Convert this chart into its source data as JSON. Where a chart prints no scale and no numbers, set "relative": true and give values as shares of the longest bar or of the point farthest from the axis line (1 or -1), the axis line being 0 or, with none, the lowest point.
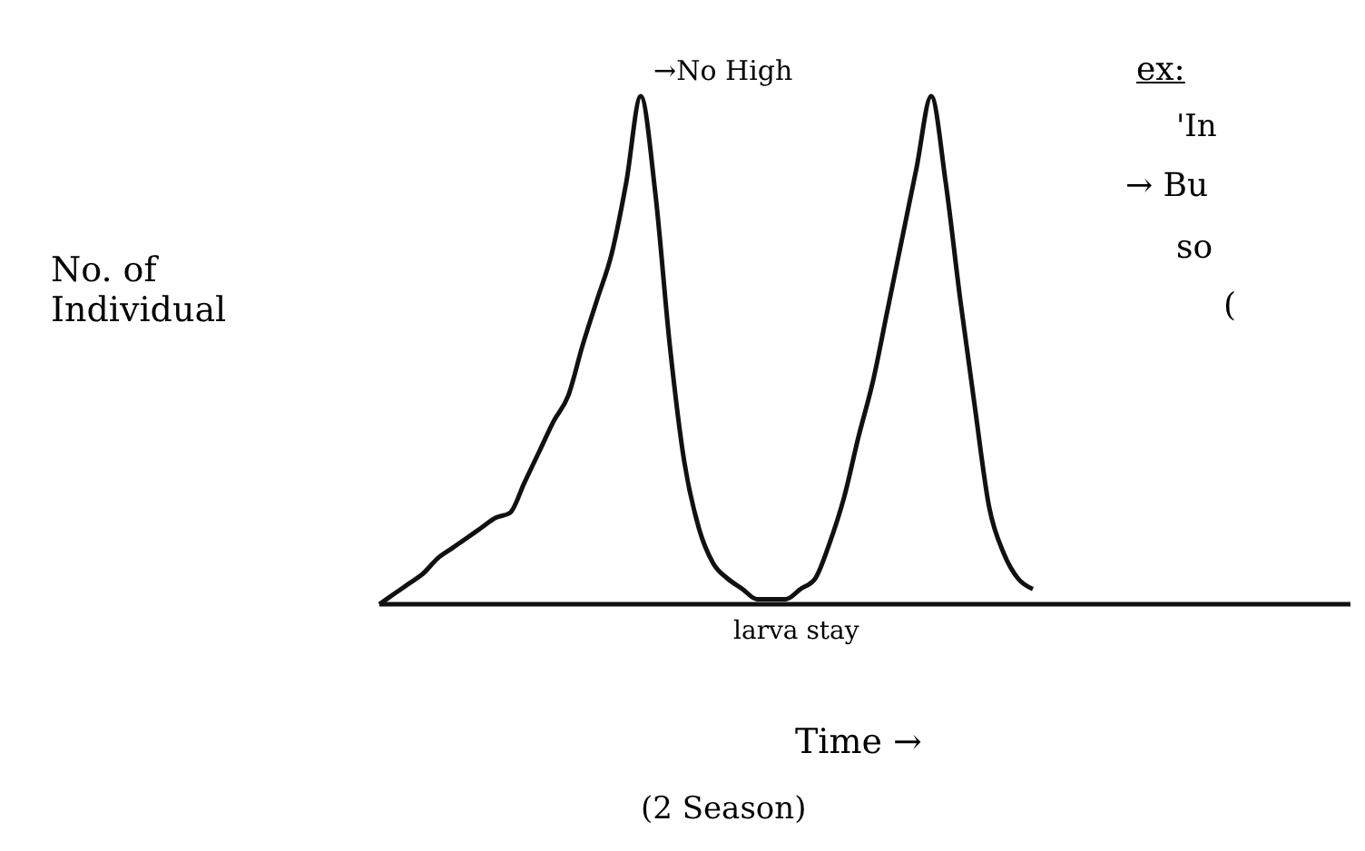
{
  "chart_data": {
    "type": "line",
    "relative": true,
    "ylabel": "No. of Individual",
    "xlabel": "Time →",
    "categories": [
      null,
      null,
      null,
      null,
      null,
      null,
      null,
      null,
      null,
      null,
      null,
      null,
      null,
      null,
      null,
      null,
      null,
      null,
      null,
      null,
      null,
      null,
      null,
      null,
      null,
      null,
      null,
      null,
      null,
      null,
      null,
      null,
      null,
      null,
      null,
      null,
      null,
      null,
      null,
      null,
      null,
      null,
      null,
      null,
      null,
      null
    ],
    "series": [
      {
        "color": "#111111",
        "values": [
          0,
          0.02,
          0.04,
          0.06,
          0.09,
          0.11,
          0.13,
          0.15,
          0.17,
          0.18,
          0.24,
          0.3,
          0.36,
          0.41,
          0.51,
          0.6,
          0.69,
          0.83,
          1,
          0.81,
          0.51,
          0.28,
          0.15,
          0.08,
          0.05,
          0.03,
          0.01,
          0.01,
          0.01,
          0.03,
          0.05,
          0.12,
          0.21,
          0.33,
          0.44,
          0.58,
          0.72,
          0.86,
          1,
          0.83,
          0.6,
          0.39,
          0.19,
          0.1,
          0.05,
          0.03
        ]
      }
    ],
    "annotations": [
      "→No High",
      "larva stay",
      "(2 Season)",
      "ex:",
      "'In",
      "→ Bu",
      "so",
      "("
    ]
  }
}
